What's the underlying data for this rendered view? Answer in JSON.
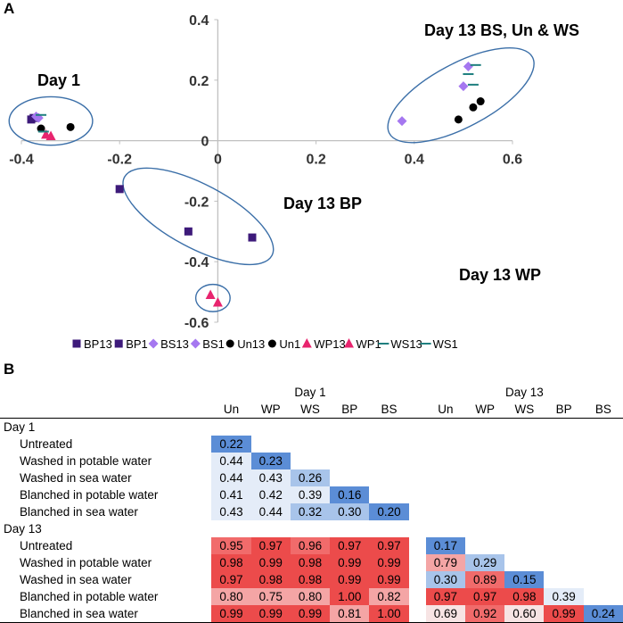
{
  "panels": {
    "a": "A",
    "b": "B"
  },
  "colors": {
    "BP": "#3d1a7a",
    "BS": "#a577f0",
    "Un": "#000000",
    "WP": "#e8246e",
    "WS": "#1f7f7f",
    "ellipse": "#3b6fa8",
    "axis": "#c0c0c0"
  },
  "chart_data": {
    "type": "scatter",
    "title": "",
    "xlabel": "",
    "ylabel": "",
    "xlim": [
      -0.4,
      0.6
    ],
    "ylim": [
      -0.6,
      0.4
    ],
    "xticks": [
      -0.4,
      -0.2,
      0,
      0.2,
      0.4,
      0.6
    ],
    "xtick_labels": [
      "-0.4",
      "-0.2",
      "0",
      "0.2",
      "0.4",
      "0.6"
    ],
    "yticks": [
      0.4,
      0.2,
      0,
      -0.2,
      -0.4,
      -0.6
    ],
    "ytick_labels": [
      "0.4",
      "0.2",
      "0",
      "-0.2",
      "-0.4",
      "-0.6"
    ],
    "series": [
      {
        "name": "BP13",
        "group": "BP",
        "marker": "square",
        "points": [
          [
            -0.2,
            -0.16
          ],
          [
            -0.06,
            -0.3
          ],
          [
            0.07,
            -0.32
          ]
        ]
      },
      {
        "name": "BP1",
        "group": "BP",
        "marker": "square",
        "points": [
          [
            -0.38,
            0.07
          ],
          [
            -0.375,
            0.075
          ]
        ]
      },
      {
        "name": "BS13",
        "group": "BS",
        "marker": "diamond",
        "points": [
          [
            0.375,
            0.065
          ],
          [
            0.5,
            0.18
          ],
          [
            0.51,
            0.245
          ]
        ]
      },
      {
        "name": "BS1",
        "group": "BS",
        "marker": "diamond",
        "points": [
          [
            -0.37,
            0.08
          ],
          [
            -0.365,
            0.075
          ]
        ]
      },
      {
        "name": "Un13",
        "group": "Un",
        "marker": "circle",
        "points": [
          [
            0.49,
            0.07
          ],
          [
            0.52,
            0.11
          ],
          [
            0.535,
            0.13
          ]
        ]
      },
      {
        "name": "Un1",
        "group": "Un",
        "marker": "circle",
        "points": [
          [
            -0.36,
            0.04
          ],
          [
            -0.3,
            0.045
          ]
        ]
      },
      {
        "name": "WP13",
        "group": "WP",
        "marker": "triangle",
        "points": [
          [
            -0.015,
            -0.51
          ],
          [
            0.0,
            -0.535
          ]
        ]
      },
      {
        "name": "WP1",
        "group": "WP",
        "marker": "triangle",
        "points": [
          [
            -0.35,
            0.02
          ],
          [
            -0.34,
            0.015
          ]
        ]
      },
      {
        "name": "WS13",
        "group": "WS",
        "marker": "dash",
        "points": [
          [
            0.51,
            0.22
          ],
          [
            0.52,
            0.185
          ],
          [
            0.525,
            0.25
          ]
        ]
      },
      {
        "name": "WS1",
        "group": "WS",
        "marker": "dash",
        "points": [
          [
            -0.36,
            0.085
          ],
          [
            -0.355,
            0.03
          ]
        ]
      }
    ],
    "clusters": [
      {
        "label": "Day 1",
        "center": [
          -0.34,
          0.065
        ],
        "radius_x": 0.085,
        "radius_y": 0.08,
        "rotation": 0
      },
      {
        "label": "Day 13 BS, Un & WS",
        "center": [
          0.495,
          0.15
        ],
        "radius_x": 0.165,
        "radius_y": 0.105,
        "rotation": -28
      },
      {
        "label": "Day 13 BP",
        "center": [
          -0.04,
          -0.25
        ],
        "radius_x": 0.17,
        "radius_y": 0.105,
        "rotation": 28
      },
      {
        "label": "Day 13 WP",
        "center": [
          -0.01,
          -0.52
        ],
        "radius_x": 0.035,
        "radius_y": 0.045,
        "rotation": 0
      }
    ],
    "legend": [
      "BP13",
      "BP1",
      "BS13",
      "BS1",
      "Un13",
      "Un1",
      "WP13",
      "WP1",
      "WS13",
      "WS1"
    ]
  },
  "table": {
    "col_groups": [
      "Day 1",
      "Day 13"
    ],
    "columns": [
      "Un",
      "WP",
      "WS",
      "BP",
      "BS"
    ],
    "row_groups": [
      {
        "label": "Day 1",
        "rows": [
          {
            "label": "Untreated",
            "d1": [
              "0.22",
              "",
              "",
              "",
              ""
            ],
            "d13": [
              "",
              "",
              "",
              "",
              ""
            ]
          },
          {
            "label": "Washed in potable water",
            "d1": [
              "0.44",
              "0.23",
              "",
              "",
              ""
            ],
            "d13": [
              "",
              "",
              "",
              "",
              ""
            ]
          },
          {
            "label": "Washed in sea water",
            "d1": [
              "0.44",
              "0.43",
              "0.26",
              "",
              ""
            ],
            "d13": [
              "",
              "",
              "",
              "",
              ""
            ]
          },
          {
            "label": "Blanched in potable water",
            "d1": [
              "0.41",
              "0.42",
              "0.39",
              "0.16",
              ""
            ],
            "d13": [
              "",
              "",
              "",
              "",
              ""
            ]
          },
          {
            "label": "Blanched in sea water",
            "d1": [
              "0.43",
              "0.44",
              "0.32",
              "0.30",
              "0.20"
            ],
            "d13": [
              "",
              "",
              "",
              "",
              ""
            ]
          }
        ]
      },
      {
        "label": "Day 13",
        "rows": [
          {
            "label": "Untreated",
            "d1": [
              "0.95",
              "0.97",
              "0.96",
              "0.97",
              "0.97"
            ],
            "d13": [
              "0.17",
              "",
              "",
              "",
              ""
            ]
          },
          {
            "label": "Washed in potable water",
            "d1": [
              "0.98",
              "0.99",
              "0.98",
              "0.99",
              "0.99"
            ],
            "d13": [
              "0.79",
              "0.29",
              "",
              "",
              ""
            ]
          },
          {
            "label": "Washed in sea water",
            "d1": [
              "0.97",
              "0.98",
              "0.98",
              "0.99",
              "0.99"
            ],
            "d13": [
              "0.30",
              "0.89",
              "0.15",
              "",
              ""
            ]
          },
          {
            "label": "Blanched in potable water",
            "d1": [
              "0.80",
              "0.75",
              "0.80",
              "1.00",
              "0.82"
            ],
            "d13": [
              "0.97",
              "0.97",
              "0.98",
              "0.39",
              ""
            ]
          },
          {
            "label": "Blanched in sea water",
            "d1": [
              "0.99",
              "0.99",
              "0.99",
              "0.81",
              "1.00"
            ],
            "d13": [
              "0.69",
              "0.92",
              "0.60",
              "0.99",
              "0.24"
            ]
          }
        ]
      }
    ]
  }
}
